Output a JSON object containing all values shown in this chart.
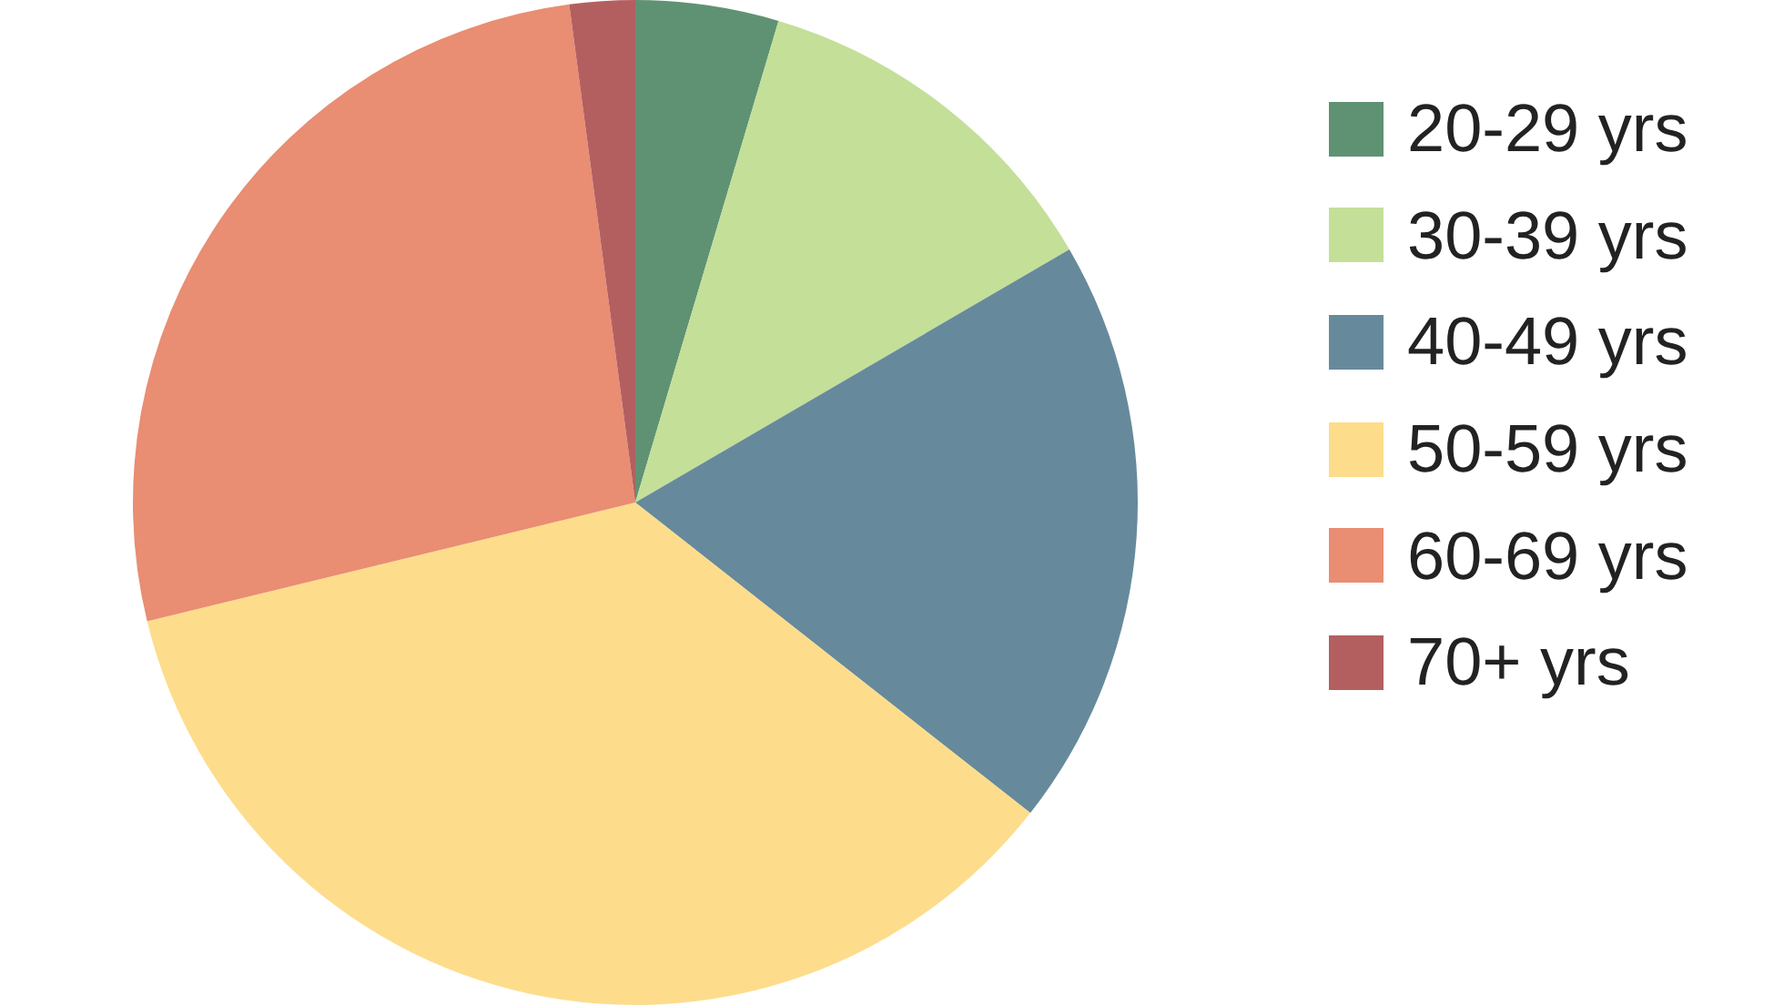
{
  "chart_data": {
    "type": "pie",
    "categories": [
      "20-29 yrs",
      "30-39 yrs",
      "40-49 yrs",
      "50-59 yrs",
      "60-69 yrs",
      "70+ yrs"
    ],
    "values": [
      4.6,
      12,
      19,
      35.6,
      26.7,
      2.1
    ],
    "colors": [
      "#5f9272",
      "#c4df98",
      "#668a9c",
      "#fddd8b",
      "#e98d73",
      "#b35f60"
    ],
    "legend": "right"
  }
}
